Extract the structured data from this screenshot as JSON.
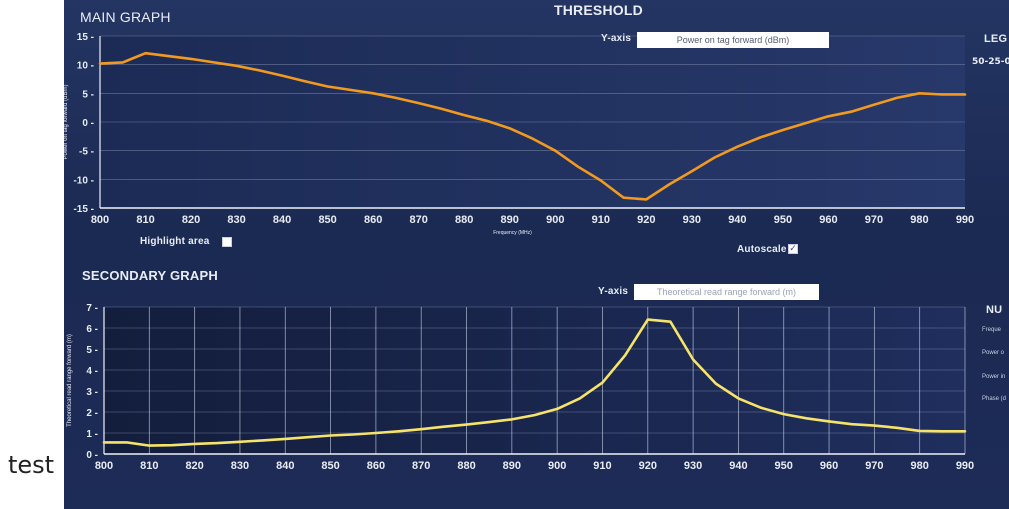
{
  "caption": "test",
  "screen": {
    "title_partial": "THRESHOLD",
    "main": {
      "title": "MAIN GRAPH",
      "yaxis_label": "Y-axis",
      "yaxis_value": "Power on tag forward (dBm)",
      "highlight_label": "Highlight area",
      "highlight_checked": false,
      "autoscale_label": "Autoscale",
      "autoscale_checked": true,
      "autoscale_mark": "✓",
      "legend_partial": "LEG",
      "legend_entry_partial": "50-25-0",
      "ylabel": "Power on tag forward (dBm)",
      "xlabel": "Frequency (MHz)",
      "color": "#f29a1f"
    },
    "secondary": {
      "title": "SECONDARY GRAPH",
      "yaxis_label": "Y-axis",
      "yaxis_value": "Theoretical read range forward (m)",
      "panel_partial": "NU",
      "fields_partial": [
        "Freque",
        "Power o",
        "Power in",
        "Phase (d"
      ],
      "ylabel": "Theoretical read range forward (m)",
      "color": "#f6e36a"
    }
  },
  "chart_data": [
    {
      "type": "line",
      "title": "MAIN GRAPH",
      "xlabel": "Frequency (MHz)",
      "ylabel": "Power on tag forward (dBm)",
      "xlim": [
        800,
        990
      ],
      "ylim": [
        -15,
        15
      ],
      "xticks": [
        800,
        810,
        820,
        830,
        840,
        850,
        860,
        870,
        880,
        890,
        900,
        910,
        920,
        930,
        940,
        950,
        960,
        970,
        980,
        990
      ],
      "yticks": [
        -15,
        -10,
        -5,
        0,
        5,
        10,
        15
      ],
      "grid": "horizontal",
      "x": [
        800,
        805,
        810,
        815,
        820,
        825,
        830,
        835,
        840,
        845,
        850,
        855,
        860,
        865,
        870,
        875,
        880,
        885,
        890,
        895,
        900,
        905,
        910,
        915,
        920,
        925,
        930,
        935,
        940,
        945,
        950,
        955,
        960,
        965,
        970,
        975,
        980,
        985,
        990
      ],
      "y": [
        10.2,
        10.4,
        12,
        11.5,
        11,
        10.4,
        9.8,
        9.0,
        8.1,
        7.1,
        6.2,
        5.6,
        5.0,
        4.2,
        3.3,
        2.3,
        1.2,
        0.2,
        -1.1,
        -2.9,
        -5.0,
        -7.8,
        -10.2,
        -13.2,
        -13.5,
        -10.9,
        -8.6,
        -6.2,
        -4.3,
        -2.7,
        -1.4,
        -0.2,
        1.0,
        1.8,
        3.0,
        4.2,
        5.0,
        4.8,
        4.8
      ]
    },
    {
      "type": "line",
      "title": "SECONDARY GRAPH",
      "xlabel": "Frequency (MHz)",
      "ylabel": "Theoretical read range forward (m)",
      "xlim": [
        800,
        990
      ],
      "ylim": [
        0,
        7
      ],
      "xticks": [
        800,
        810,
        820,
        830,
        840,
        850,
        860,
        870,
        880,
        890,
        900,
        910,
        920,
        930,
        940,
        950,
        960,
        970,
        980,
        990
      ],
      "yticks": [
        0,
        1,
        2,
        3,
        4,
        5,
        6,
        7
      ],
      "grid": "both",
      "x": [
        800,
        805,
        810,
        815,
        820,
        825,
        830,
        835,
        840,
        845,
        850,
        855,
        860,
        865,
        870,
        875,
        880,
        885,
        890,
        895,
        900,
        905,
        910,
        915,
        920,
        925,
        930,
        935,
        940,
        945,
        950,
        955,
        960,
        965,
        970,
        975,
        980,
        985,
        990
      ],
      "y": [
        0.55,
        0.55,
        0.4,
        0.42,
        0.48,
        0.52,
        0.58,
        0.65,
        0.72,
        0.8,
        0.88,
        0.93,
        1.0,
        1.08,
        1.18,
        1.3,
        1.4,
        1.52,
        1.65,
        1.85,
        2.15,
        2.65,
        3.4,
        4.7,
        6.4,
        6.3,
        4.5,
        3.35,
        2.65,
        2.2,
        1.9,
        1.7,
        1.55,
        1.42,
        1.35,
        1.25,
        1.1,
        1.08,
        1.08
      ]
    }
  ]
}
